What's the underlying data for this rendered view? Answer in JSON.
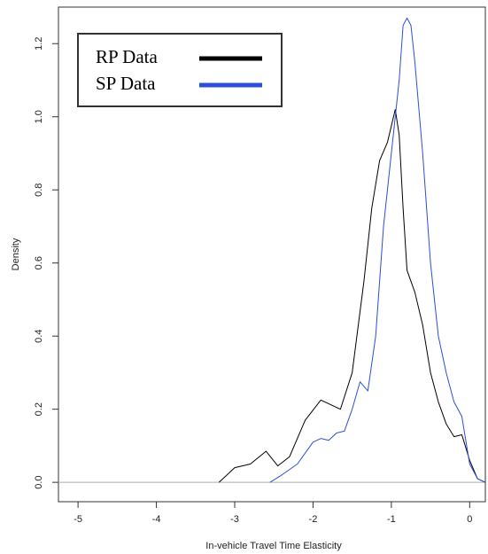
{
  "chart_data": {
    "type": "line",
    "xlabel": "In-vehicle Travel Time Elasticity",
    "ylabel": "Density",
    "xlim": [
      -5.25,
      0.2
    ],
    "ylim": [
      -0.053,
      1.3
    ],
    "xticks": [
      -5,
      -4,
      -3,
      -2,
      -1,
      0
    ],
    "yticks": [
      {
        "value": 0,
        "label": "0.0"
      },
      {
        "value": 0.2,
        "label": "0.2"
      },
      {
        "value": 0.4,
        "label": "0.4"
      },
      {
        "value": 0.6,
        "label": "0.6"
      },
      {
        "value": 0.8,
        "label": "0.8"
      },
      {
        "value": 1,
        "label": "1.0"
      },
      {
        "value": 1.2,
        "label": "1.2"
      }
    ],
    "legend": "top-left",
    "series": [
      {
        "name": "RP Data",
        "color": "#000000",
        "x": [
          -3.2,
          -3.0,
          -2.8,
          -2.6,
          -2.45,
          -2.3,
          -2.1,
          -1.9,
          -1.75,
          -1.65,
          -1.5,
          -1.35,
          -1.25,
          -1.15,
          -1.05,
          -0.95,
          -0.9,
          -0.85,
          -0.8,
          -0.7,
          -0.6,
          -0.5,
          -0.4,
          -0.3,
          -0.2,
          -0.1,
          0.0,
          0.1,
          0.2
        ],
        "values": [
          0,
          0.04,
          0.05,
          0.085,
          0.045,
          0.07,
          0.17,
          0.225,
          0.21,
          0.2,
          0.3,
          0.55,
          0.75,
          0.88,
          0.93,
          1.02,
          0.95,
          0.75,
          0.58,
          0.52,
          0.43,
          0.3,
          0.22,
          0.16,
          0.125,
          0.13,
          0.06,
          0.01,
          0
        ]
      },
      {
        "name": "SP Data",
        "color": "#2b4fd6",
        "x": [
          -2.55,
          -2.4,
          -2.2,
          -2.0,
          -1.9,
          -1.8,
          -1.7,
          -1.6,
          -1.5,
          -1.4,
          -1.3,
          -1.2,
          -1.1,
          -1.0,
          -0.9,
          -0.85,
          -0.8,
          -0.75,
          -0.7,
          -0.6,
          -0.5,
          -0.4,
          -0.3,
          -0.2,
          -0.1,
          0.0,
          0.1,
          0.2
        ],
        "values": [
          0,
          0.02,
          0.05,
          0.11,
          0.12,
          0.115,
          0.135,
          0.14,
          0.2,
          0.275,
          0.25,
          0.4,
          0.7,
          0.9,
          1.1,
          1.25,
          1.27,
          1.25,
          1.15,
          0.9,
          0.6,
          0.4,
          0.3,
          0.22,
          0.18,
          0.05,
          0.01,
          0
        ]
      }
    ]
  }
}
